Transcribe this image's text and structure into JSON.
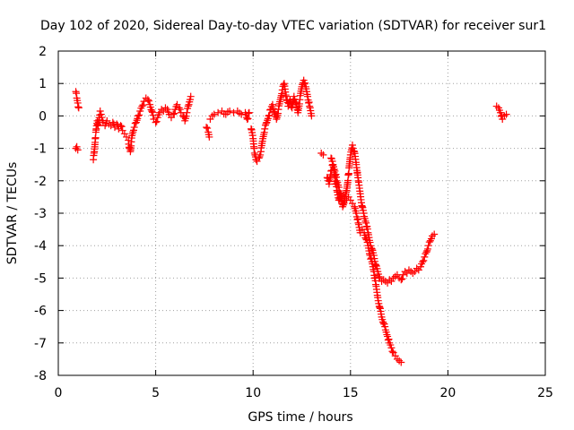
{
  "chart_data": {
    "type": "scatter",
    "title": "Day 102 of 2020, Sidereal Day-to-day VTEC variation (SDTVAR) for receiver sur1",
    "xlabel": "GPS time / hours",
    "ylabel": "SDTVAR / TECUs",
    "xlim": [
      0,
      25
    ],
    "ylim": [
      -8,
      2
    ],
    "xticks": [
      0,
      5,
      10,
      15,
      20,
      25
    ],
    "yticks": [
      2,
      1,
      0,
      -1,
      -2,
      -3,
      -4,
      -5,
      -6,
      -7,
      -8
    ],
    "grid": true,
    "marker": "plus",
    "marker_color": "#ff0000",
    "series": [
      {
        "name": "sur1",
        "segments": [
          [
            [
              0.9,
              0.75
            ],
            [
              0.95,
              0.55
            ],
            [
              1.0,
              0.4
            ],
            [
              1.05,
              0.25
            ]
          ],
          [
            [
              0.9,
              -1.0
            ],
            [
              0.95,
              -0.95
            ],
            [
              1.0,
              -1.05
            ]
          ],
          [
            [
              1.8,
              -1.35
            ],
            [
              1.85,
              -1.1
            ],
            [
              1.9,
              -0.7
            ],
            [
              1.95,
              -0.4
            ],
            [
              2.0,
              -0.15
            ],
            [
              2.05,
              -0.3
            ],
            [
              2.1,
              -0.05
            ],
            [
              2.15,
              0.15
            ],
            [
              2.2,
              0.05
            ],
            [
              2.3,
              -0.2
            ],
            [
              2.4,
              -0.3
            ],
            [
              2.5,
              -0.15
            ],
            [
              2.6,
              -0.25
            ],
            [
              2.7,
              -0.3
            ],
            [
              2.8,
              -0.2
            ],
            [
              2.9,
              -0.35
            ],
            [
              3.0,
              -0.25
            ],
            [
              3.1,
              -0.4
            ],
            [
              3.2,
              -0.3
            ],
            [
              3.3,
              -0.45
            ],
            [
              3.4,
              -0.55
            ],
            [
              3.5,
              -0.65
            ],
            [
              3.6,
              -0.75
            ],
            [
              3.65,
              -1.0
            ],
            [
              3.7,
              -1.1
            ],
            [
              3.75,
              -0.8
            ],
            [
              3.8,
              -0.55
            ],
            [
              3.9,
              -0.35
            ],
            [
              4.0,
              -0.2
            ],
            [
              4.1,
              0.0
            ],
            [
              4.2,
              0.15
            ],
            [
              4.3,
              0.3
            ],
            [
              4.4,
              0.45
            ],
            [
              4.5,
              0.55
            ],
            [
              4.6,
              0.5
            ],
            [
              4.7,
              0.35
            ],
            [
              4.8,
              0.15
            ],
            [
              4.9,
              -0.1
            ],
            [
              5.0,
              -0.2
            ],
            [
              5.1,
              -0.05
            ],
            [
              5.2,
              0.1
            ],
            [
              5.3,
              0.2
            ],
            [
              5.4,
              0.15
            ],
            [
              5.5,
              0.25
            ],
            [
              5.6,
              0.2
            ],
            [
              5.7,
              0.05
            ],
            [
              5.8,
              -0.05
            ],
            [
              5.9,
              0.05
            ],
            [
              6.0,
              0.2
            ],
            [
              6.1,
              0.35
            ],
            [
              6.2,
              0.25
            ],
            [
              6.3,
              0.1
            ],
            [
              6.4,
              0.0
            ],
            [
              6.5,
              -0.15
            ],
            [
              6.6,
              0.1
            ],
            [
              6.7,
              0.35
            ],
            [
              6.8,
              0.6
            ]
          ],
          [
            [
              7.6,
              -0.35
            ],
            [
              7.7,
              -0.5
            ],
            [
              7.75,
              -0.65
            ]
          ],
          [
            [
              7.8,
              -0.1
            ],
            [
              7.9,
              0.0
            ],
            [
              8.0,
              0.05
            ],
            [
              8.2,
              0.1
            ],
            [
              8.4,
              0.15
            ],
            [
              8.6,
              0.05
            ],
            [
              8.8,
              0.15
            ],
            [
              9.0,
              0.1
            ],
            [
              9.2,
              0.15
            ],
            [
              9.4,
              0.05
            ],
            [
              9.6,
              0.1
            ],
            [
              9.7,
              -0.1
            ],
            [
              9.8,
              0.1
            ]
          ],
          [
            [
              9.9,
              -0.4
            ],
            [
              10.0,
              -0.7
            ],
            [
              10.05,
              -1.0
            ],
            [
              10.1,
              -1.2
            ],
            [
              10.15,
              -1.35
            ],
            [
              10.2,
              -1.4
            ],
            [
              10.3,
              -1.3
            ],
            [
              10.4,
              -1.1
            ],
            [
              10.5,
              -0.7
            ],
            [
              10.6,
              -0.4
            ],
            [
              10.7,
              -0.2
            ],
            [
              10.8,
              0.0
            ],
            [
              10.9,
              0.2
            ],
            [
              11.0,
              0.35
            ],
            [
              11.1,
              0.1
            ],
            [
              11.2,
              -0.1
            ],
            [
              11.3,
              0.2
            ],
            [
              11.4,
              0.5
            ],
            [
              11.5,
              0.8
            ],
            [
              11.6,
              1.0
            ],
            [
              11.7,
              0.6
            ],
            [
              11.8,
              0.3
            ],
            [
              11.9,
              0.5
            ],
            [
              12.0,
              0.25
            ],
            [
              12.1,
              0.6
            ],
            [
              12.2,
              0.4
            ],
            [
              12.3,
              0.1
            ],
            [
              12.4,
              0.5
            ],
            [
              12.5,
              0.9
            ],
            [
              12.6,
              1.1
            ],
            [
              12.7,
              0.9
            ],
            [
              12.8,
              0.6
            ],
            [
              12.9,
              0.3
            ],
            [
              13.0,
              0.0
            ]
          ],
          [
            [
              13.5,
              -1.15
            ],
            [
              13.6,
              -1.2
            ]
          ],
          [
            [
              13.8,
              -1.9
            ],
            [
              13.9,
              -2.1
            ],
            [
              14.0,
              -1.7
            ],
            [
              14.1,
              -1.5
            ],
            [
              14.2,
              -1.9
            ],
            [
              14.3,
              -2.3
            ],
            [
              14.4,
              -2.6
            ],
            [
              14.5,
              -2.4
            ],
            [
              14.6,
              -2.8
            ],
            [
              14.7,
              -2.6
            ],
            [
              14.8,
              -2.3
            ],
            [
              14.9,
              -1.8
            ],
            [
              15.0,
              -1.2
            ],
            [
              15.1,
              -0.9
            ],
            [
              15.2,
              -1.1
            ],
            [
              15.3,
              -1.5
            ],
            [
              15.4,
              -2.0
            ],
            [
              15.5,
              -2.4
            ],
            [
              15.6,
              -2.8
            ],
            [
              15.7,
              -3.1
            ],
            [
              15.8,
              -3.3
            ],
            [
              15.9,
              -3.6
            ],
            [
              16.0,
              -3.9
            ],
            [
              16.1,
              -4.1
            ],
            [
              16.2,
              -4.3
            ],
            [
              16.3,
              -4.6
            ],
            [
              16.4,
              -4.8
            ],
            [
              16.5,
              -5.0
            ],
            [
              16.6,
              -5.1
            ],
            [
              16.7,
              -5.05
            ],
            [
              16.8,
              -5.1
            ],
            [
              16.9,
              -5.15
            ],
            [
              17.0,
              -5.05
            ],
            [
              17.1,
              -5.1
            ],
            [
              17.2,
              -5.0
            ],
            [
              17.3,
              -4.95
            ],
            [
              17.4,
              -4.9
            ],
            [
              17.5,
              -5.0
            ],
            [
              17.6,
              -5.05
            ],
            [
              17.7,
              -4.9
            ],
            [
              17.8,
              -4.8
            ],
            [
              17.9,
              -4.85
            ],
            [
              18.0,
              -4.75
            ],
            [
              18.1,
              -4.8
            ],
            [
              18.2,
              -4.85
            ],
            [
              18.3,
              -4.8
            ],
            [
              18.4,
              -4.7
            ],
            [
              18.5,
              -4.75
            ],
            [
              18.6,
              -4.65
            ],
            [
              18.7,
              -4.5
            ],
            [
              18.8,
              -4.35
            ],
            [
              18.9,
              -4.2
            ],
            [
              19.0,
              -4.0
            ],
            [
              19.1,
              -3.85
            ],
            [
              19.2,
              -3.7
            ],
            [
              19.3,
              -3.65
            ]
          ],
          [
            [
              14.0,
              -1.3
            ],
            [
              14.1,
              -1.5
            ],
            [
              14.2,
              -1.7
            ],
            [
              14.3,
              -2.0
            ],
            [
              14.4,
              -2.2
            ],
            [
              14.5,
              -2.5
            ],
            [
              14.6,
              -2.7
            ],
            [
              14.7,
              -2.55
            ],
            [
              14.8,
              -2.6
            ],
            [
              14.9,
              -2.5
            ],
            [
              15.0,
              -2.6
            ],
            [
              15.1,
              -2.7
            ],
            [
              15.2,
              -2.8
            ],
            [
              15.3,
              -3.0
            ],
            [
              15.4,
              -3.3
            ],
            [
              15.5,
              -3.6
            ],
            [
              15.6,
              -3.5
            ],
            [
              15.7,
              -3.6
            ],
            [
              15.8,
              -3.8
            ],
            [
              15.9,
              -4.0
            ],
            [
              16.0,
              -4.3
            ],
            [
              16.1,
              -4.5
            ],
            [
              16.2,
              -4.8
            ],
            [
              16.3,
              -5.2
            ],
            [
              16.4,
              -5.6
            ],
            [
              16.5,
              -5.9
            ],
            [
              16.6,
              -6.2
            ],
            [
              16.7,
              -6.4
            ],
            [
              16.8,
              -6.6
            ],
            [
              16.9,
              -6.8
            ],
            [
              17.0,
              -7.0
            ],
            [
              17.1,
              -7.15
            ],
            [
              17.2,
              -7.3
            ],
            [
              17.3,
              -7.4
            ],
            [
              17.4,
              -7.5
            ],
            [
              17.5,
              -7.55
            ],
            [
              17.6,
              -7.6
            ]
          ],
          [
            [
              22.5,
              0.3
            ],
            [
              22.6,
              0.25
            ],
            [
              22.7,
              0.1
            ],
            [
              22.8,
              -0.1
            ],
            [
              22.9,
              0.0
            ],
            [
              23.0,
              0.05
            ]
          ]
        ]
      }
    ]
  }
}
